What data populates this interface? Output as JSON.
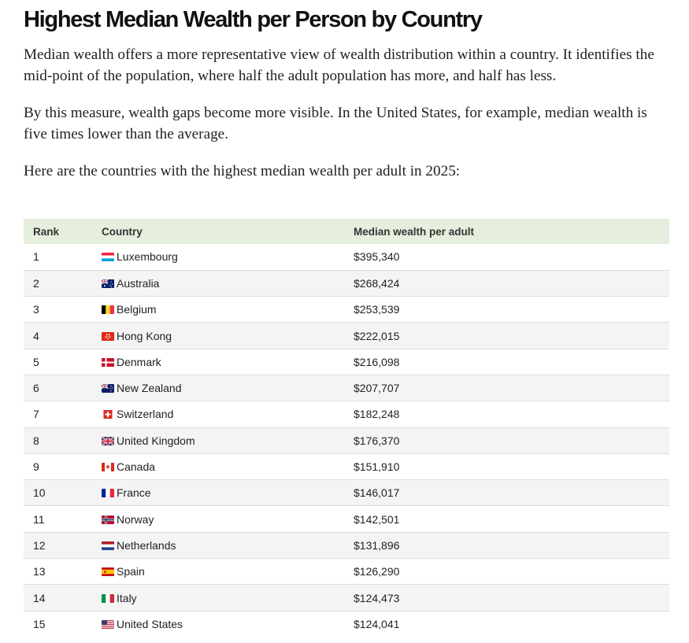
{
  "article": {
    "title": "Highest Median Wealth per Person by Country",
    "paragraph1": "Median wealth offers a more representative view of wealth distribution within a country. It identifies the mid-point of the population, where half the adult population has more, and half has less.",
    "paragraph2": "By this measure, wealth gaps become more visible. In the United States, for example, median wealth is five times lower than the average.",
    "paragraph3": "Here are the countries with the highest median wealth per adult in 2025:"
  },
  "table": {
    "headers": [
      "Rank",
      "Country",
      "Median wealth per adult"
    ],
    "rows": [
      {
        "rank": "1",
        "country": "Luxembourg",
        "flag": "luxembourg-flag-icon",
        "value": "$395,340"
      },
      {
        "rank": "2",
        "country": "Australia",
        "flag": "australia-flag-icon",
        "value": "$268,424"
      },
      {
        "rank": "3",
        "country": "Belgium",
        "flag": "belgium-flag-icon",
        "value": "$253,539"
      },
      {
        "rank": "4",
        "country": "Hong Kong",
        "flag": "hong-kong-flag-icon",
        "value": "$222,015"
      },
      {
        "rank": "5",
        "country": "Denmark",
        "flag": "denmark-flag-icon",
        "value": "$216,098"
      },
      {
        "rank": "6",
        "country": "New Zealand",
        "flag": "new-zealand-flag-icon",
        "value": "$207,707"
      },
      {
        "rank": "7",
        "country": "Switzerland",
        "flag": "switzerland-flag-icon",
        "value": "$182,248"
      },
      {
        "rank": "8",
        "country": "United Kingdom",
        "flag": "united-kingdom-flag-icon",
        "value": "$176,370"
      },
      {
        "rank": "9",
        "country": "Canada",
        "flag": "canada-flag-icon",
        "value": "$151,910"
      },
      {
        "rank": "10",
        "country": "France",
        "flag": "france-flag-icon",
        "value": "$146,017"
      },
      {
        "rank": "11",
        "country": "Norway",
        "flag": "norway-flag-icon",
        "value": "$142,501"
      },
      {
        "rank": "12",
        "country": "Netherlands",
        "flag": "netherlands-flag-icon",
        "value": "$131,896"
      },
      {
        "rank": "13",
        "country": "Spain",
        "flag": "spain-flag-icon",
        "value": "$126,290"
      },
      {
        "rank": "14",
        "country": "Italy",
        "flag": "italy-flag-icon",
        "value": "$124,473"
      },
      {
        "rank": "15",
        "country": "United States",
        "flag": "united-states-flag-icon",
        "value": "$124,041"
      }
    ]
  },
  "colors": {
    "header_bg": "#e6efdd",
    "row_alt_bg": "#f4f4f4",
    "text": "#222222"
  }
}
